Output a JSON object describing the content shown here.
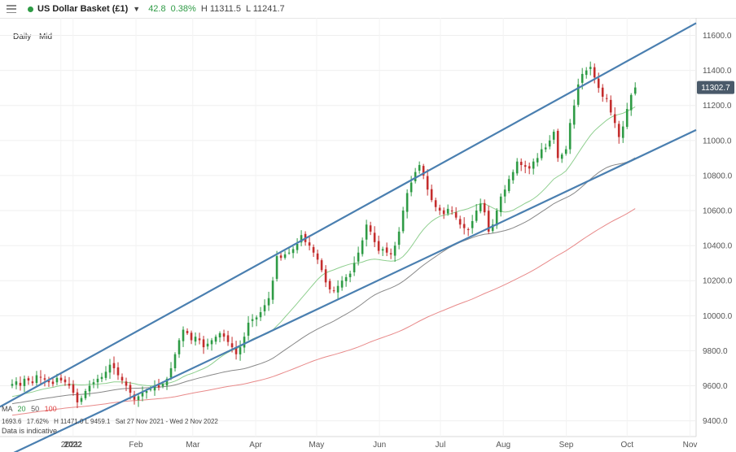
{
  "toolbar": {
    "instrument": "US Dollar Basket (£1)",
    "change": "42.8",
    "change_pct": "0.38%",
    "high": "H 11311.5",
    "low": "L 11241.7",
    "status_color": "#2e9b45"
  },
  "timeframe": {
    "period": "Daily",
    "price": "Mid"
  },
  "current_price": "11302.7",
  "indicator_legend": {
    "label": "MA",
    "p20": "20",
    "p50": "50",
    "p100": "100"
  },
  "stats": {
    "left": "1693.6",
    "pct": "17.62%",
    "range": "H 11471.0   L 9459.1",
    "dates": "Sat 27 Nov 2021 - Wed 2 Nov 2022"
  },
  "disclaimer": "Data is indicative",
  "chart_data": {
    "type": "candlestick",
    "title": "US Dollar Basket (£1)",
    "y_ticks": [
      9400,
      9600,
      9800,
      10000,
      10200,
      10400,
      10600,
      10800,
      11000,
      11200,
      11400,
      11600
    ],
    "y_tick_labels": [
      "9400.0",
      "9600.0",
      "9800.0",
      "10000.0",
      "10200.0",
      "10400.0",
      "10600.0",
      "10800.0",
      "11000.0",
      "11200.0",
      "11400.0",
      "11600.0"
    ],
    "x_labels": [
      "2021",
      "2022",
      "Feb",
      "Mar",
      "Apr",
      "May",
      "Jun",
      "Jul",
      "Aug",
      "Sep",
      "Oct",
      "Nov"
    ],
    "x_label_days": [
      -1,
      5,
      36,
      64,
      95,
      125,
      156,
      186,
      217,
      248,
      278,
      309
    ],
    "day_range": [
      -31,
      312
    ],
    "ylim": [
      9310,
      11700
    ],
    "closes": [
      9610,
      9625,
      9600,
      9640,
      9630,
      9615,
      9660,
      9650,
      9635,
      9620,
      9610,
      9645,
      9630,
      9620,
      9600,
      9560,
      9505,
      9530,
      9570,
      9600,
      9620,
      9640,
      9650,
      9680,
      9720,
      9700,
      9660,
      9630,
      9600,
      9560,
      9520,
      9540,
      9560,
      9570,
      9580,
      9600,
      9590,
      9610,
      9640,
      9700,
      9780,
      9860,
      9920,
      9900,
      9860,
      9880,
      9860,
      9820,
      9840,
      9860,
      9880,
      9900,
      9880,
      9850,
      9820,
      9780,
      9820,
      9880,
      9960,
      9980,
      9990,
      10020,
      10060,
      10100,
      10200,
      10340,
      10330,
      10350,
      10360,
      10380,
      10410,
      10460,
      10420,
      10400,
      10360,
      10320,
      10260,
      10190,
      10150,
      10140,
      10170,
      10200,
      10220,
      10240,
      10300,
      10360,
      10430,
      10520,
      10480,
      10420,
      10370,
      10380,
      10360,
      10350,
      10400,
      10480,
      10600,
      10700,
      10760,
      10820,
      10860,
      10800,
      10720,
      10660,
      10620,
      10600,
      10580,
      10610,
      10600,
      10560,
      10520,
      10500,
      10490,
      10540,
      10600,
      10640,
      10590,
      10480,
      10520,
      10600,
      10680,
      10720,
      10780,
      10820,
      10880,
      10860,
      10850,
      10840,
      10880,
      10900,
      10950,
      10960,
      11000,
      11050,
      10900,
      10920,
      10950,
      11100,
      11200,
      11320,
      11380,
      11400,
      11420,
      11360,
      11300,
      11250,
      11240,
      11160,
      11100,
      11020,
      11080,
      11180,
      11260,
      11302.7
    ],
    "series": [
      {
        "name": "MA 20",
        "color": "#8fcf8f"
      },
      {
        "name": "MA 50",
        "color": "#888888"
      },
      {
        "name": "MA 100",
        "color": "#e88a8a"
      }
    ],
    "trend_lines": [
      {
        "name": "upper channel",
        "points": [
          [
            -31,
            9480
          ],
          [
            312,
            11670
          ]
        ]
      },
      {
        "name": "lower channel",
        "points": [
          [
            -31,
            9180
          ],
          [
            312,
            11060
          ]
        ]
      }
    ],
    "colors": {
      "up": "#2e9b45",
      "down": "#c42d2d",
      "channel": "#4a7fb0",
      "price_tag": "#4a5a6a"
    }
  }
}
